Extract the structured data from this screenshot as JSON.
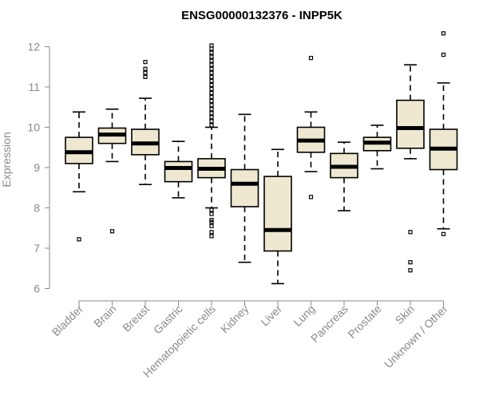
{
  "chart_data": {
    "type": "boxplot",
    "title": "ENSG00000132376 - INPP5K",
    "xlabel": "",
    "ylabel": "Expression",
    "ylim": [
      6,
      12.3
    ],
    "yticks": [
      6,
      7,
      8,
      9,
      10,
      11,
      12
    ],
    "colors": {
      "box_fill": "#efe8d1",
      "box_stroke": "#000000",
      "median": "#000000",
      "axis": "#8a8a8a"
    },
    "categories": [
      "Bladder",
      "Brain",
      "Breast",
      "Gastric",
      "Hematopoietic cells",
      "Kidney",
      "Liver",
      "Lung",
      "Pancreas",
      "Prostate",
      "Skin",
      "Unknown / Other"
    ],
    "boxes": [
      {
        "name": "Bladder",
        "whisker_low": 8.4,
        "q1": 9.1,
        "median": 9.38,
        "q3": 9.75,
        "whisker_high": 10.38,
        "outliers": [
          7.22
        ]
      },
      {
        "name": "Brain",
        "whisker_low": 9.15,
        "q1": 9.6,
        "median": 9.82,
        "q3": 9.98,
        "whisker_high": 10.45,
        "outliers": [
          7.42
        ]
      },
      {
        "name": "Breast",
        "whisker_low": 8.58,
        "q1": 9.32,
        "median": 9.6,
        "q3": 9.95,
        "whisker_high": 10.72,
        "outliers": [
          11.25,
          11.35,
          11.45,
          11.62
        ]
      },
      {
        "name": "Gastric",
        "whisker_low": 8.25,
        "q1": 8.65,
        "median": 8.99,
        "q3": 9.15,
        "whisker_high": 9.65,
        "outliers": []
      },
      {
        "name": "Hematopoietic cells",
        "whisker_low": 8.0,
        "q1": 8.75,
        "median": 8.97,
        "q3": 9.22,
        "whisker_high": 10.0,
        "outliers": [
          7.3,
          7.4,
          7.55,
          7.65,
          7.7,
          7.85,
          7.95,
          10.05,
          10.15,
          10.25,
          10.35,
          10.45,
          10.55,
          10.65,
          10.75,
          10.85,
          10.95,
          11.05,
          11.15,
          11.25,
          11.35,
          11.45,
          11.55,
          11.65,
          11.75,
          11.85,
          11.95,
          12.03
        ]
      },
      {
        "name": "Kidney",
        "whisker_low": 6.65,
        "q1": 8.03,
        "median": 8.6,
        "q3": 8.95,
        "whisker_high": 10.32,
        "outliers": []
      },
      {
        "name": "Liver",
        "whisker_low": 6.12,
        "q1": 6.93,
        "median": 7.45,
        "q3": 8.78,
        "whisker_high": 9.45,
        "outliers": []
      },
      {
        "name": "Lung",
        "whisker_low": 8.9,
        "q1": 9.38,
        "median": 9.67,
        "q3": 10.0,
        "whisker_high": 10.38,
        "outliers": [
          8.27,
          11.72
        ]
      },
      {
        "name": "Pancreas",
        "whisker_low": 7.93,
        "q1": 8.75,
        "median": 9.02,
        "q3": 9.35,
        "whisker_high": 9.63,
        "outliers": []
      },
      {
        "name": "Prostate",
        "whisker_low": 8.97,
        "q1": 9.42,
        "median": 9.62,
        "q3": 9.75,
        "whisker_high": 10.05,
        "outliers": []
      },
      {
        "name": "Skin",
        "whisker_low": 9.22,
        "q1": 9.48,
        "median": 9.98,
        "q3": 10.67,
        "whisker_high": 11.55,
        "outliers": [
          7.4,
          6.65,
          6.45
        ]
      },
      {
        "name": "Unknown / Other",
        "whisker_low": 7.48,
        "q1": 8.95,
        "median": 9.47,
        "q3": 9.95,
        "whisker_high": 11.1,
        "outliers": [
          7.35,
          11.8,
          12.33
        ]
      }
    ]
  }
}
